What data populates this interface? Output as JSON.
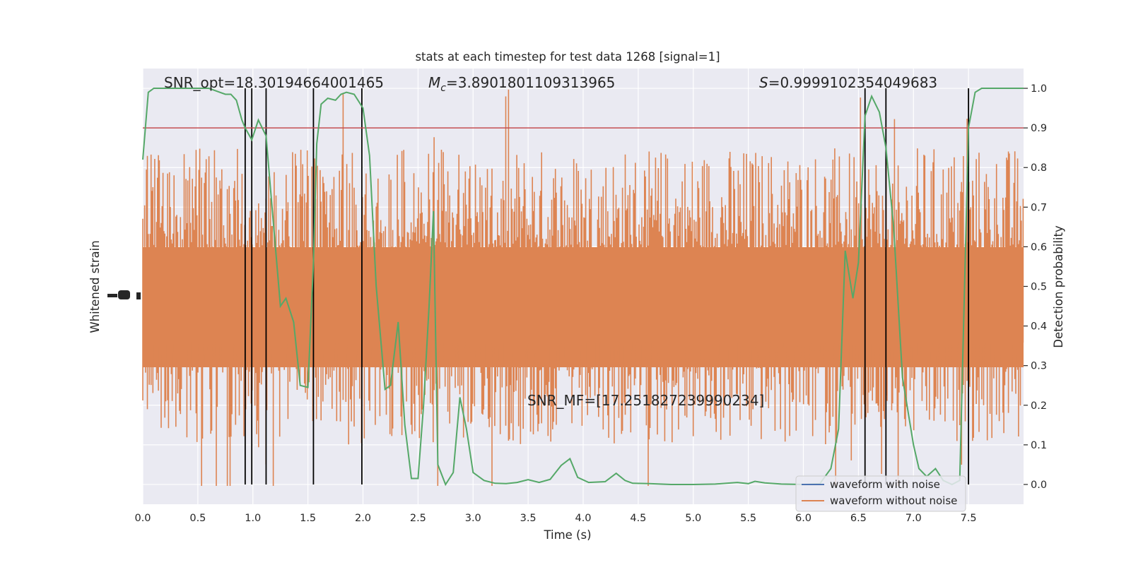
{
  "chart_data": {
    "type": "line",
    "title": "stats at each timestep for test data 1268 [signal=1]",
    "xlabel": "Time (s)",
    "ylabel_left": "Whitened strain",
    "ylabel_right": "Detection probability",
    "xlim": [
      0,
      8
    ],
    "ylim_right": [
      -0.05,
      1.05
    ],
    "x_ticks": [
      0.0,
      0.5,
      1.0,
      1.5,
      2.0,
      2.5,
      3.0,
      3.5,
      4.0,
      4.5,
      5.0,
      5.5,
      6.0,
      6.5,
      7.0,
      7.5
    ],
    "x_tick_labels": [
      "0.0",
      "0.5",
      "1.0",
      "1.5",
      "2.0",
      "2.5",
      "3.0",
      "3.5",
      "4.0",
      "4.5",
      "5.0",
      "5.5",
      "6.0",
      "6.5",
      "7.0",
      "7.5"
    ],
    "y_right_ticks": [
      0.0,
      0.1,
      0.2,
      0.3,
      0.4,
      0.5,
      0.6,
      0.7,
      0.8,
      0.9,
      1.0
    ],
    "y_right_tick_labels": [
      "0.0",
      "0.1",
      "0.2",
      "0.3",
      "0.4",
      "0.5",
      "0.6",
      "0.7",
      "0.8",
      "0.9",
      "1.0"
    ],
    "grid": true,
    "legend_position": "bottom-right",
    "annotations": {
      "snr_opt": "SNR_opt=18.30194664001465",
      "mc_symbol": "M",
      "mc_sub": "c",
      "mc_value": "=3.8901801109313965",
      "s_symbol": "S",
      "s_value": "=0.9999102354049683",
      "snr_mf": "SNR_MF=[17.251827239990234]"
    },
    "threshold": 0.9,
    "vertical_lines": [
      0.93,
      0.99,
      1.12,
      1.55,
      1.99,
      6.56,
      6.75,
      7.5
    ],
    "series": [
      {
        "name": "waveform with noise",
        "color": "#4c72b0",
        "values_note": ""
      },
      {
        "name": "waveform without noise",
        "color": "#dd8452"
      }
    ],
    "detection_probability": {
      "color": "#55a868",
      "x": [
        0.0,
        0.05,
        0.1,
        0.2,
        0.3,
        0.4,
        0.5,
        0.6,
        0.7,
        0.75,
        0.8,
        0.85,
        0.9,
        0.93,
        0.99,
        1.05,
        1.12,
        1.18,
        1.25,
        1.3,
        1.37,
        1.43,
        1.5,
        1.55,
        1.58,
        1.62,
        1.68,
        1.75,
        1.8,
        1.85,
        1.92,
        2.0,
        2.06,
        2.12,
        2.2,
        2.25,
        2.32,
        2.38,
        2.44,
        2.5,
        2.55,
        2.6,
        2.64,
        2.68,
        2.75,
        2.82,
        2.88,
        2.94,
        3.0,
        3.1,
        3.2,
        3.3,
        3.4,
        3.5,
        3.6,
        3.7,
        3.8,
        3.88,
        3.95,
        4.05,
        4.2,
        4.3,
        4.38,
        4.45,
        4.6,
        4.8,
        5.0,
        5.2,
        5.3,
        5.4,
        5.5,
        5.56,
        5.65,
        5.8,
        6.0,
        6.15,
        6.25,
        6.32,
        6.38,
        6.45,
        6.5,
        6.56,
        6.62,
        6.69,
        6.75,
        6.82,
        6.9,
        7.0,
        7.05,
        7.12,
        7.2,
        7.27,
        7.35,
        7.42,
        7.5,
        7.56,
        7.62,
        7.7,
        7.8,
        7.9,
        8.0
      ],
      "y": [
        0.82,
        0.99,
        1.0,
        1.0,
        1.0,
        1.0,
        1.0,
        1.0,
        0.99,
        0.985,
        0.985,
        0.97,
        0.92,
        0.9,
        0.87,
        0.92,
        0.88,
        0.68,
        0.45,
        0.47,
        0.41,
        0.25,
        0.245,
        0.56,
        0.86,
        0.96,
        0.975,
        0.97,
        0.985,
        0.99,
        0.985,
        0.95,
        0.83,
        0.5,
        0.24,
        0.25,
        0.41,
        0.15,
        0.015,
        0.015,
        0.2,
        0.45,
        0.69,
        0.05,
        0.0,
        0.03,
        0.22,
        0.14,
        0.03,
        0.01,
        0.003,
        0.002,
        0.005,
        0.012,
        0.005,
        0.013,
        0.048,
        0.065,
        0.018,
        0.005,
        0.007,
        0.028,
        0.01,
        0.003,
        0.002,
        0.0,
        0.0,
        0.001,
        0.003,
        0.005,
        0.002,
        0.008,
        0.004,
        0.001,
        0.0,
        0.002,
        0.04,
        0.14,
        0.59,
        0.47,
        0.56,
        0.93,
        0.98,
        0.94,
        0.85,
        0.65,
        0.27,
        0.1,
        0.04,
        0.02,
        0.04,
        0.01,
        0.0,
        0.01,
        0.9,
        0.99,
        1.0,
        1.0,
        1.0,
        1.0,
        1.0
      ]
    }
  }
}
